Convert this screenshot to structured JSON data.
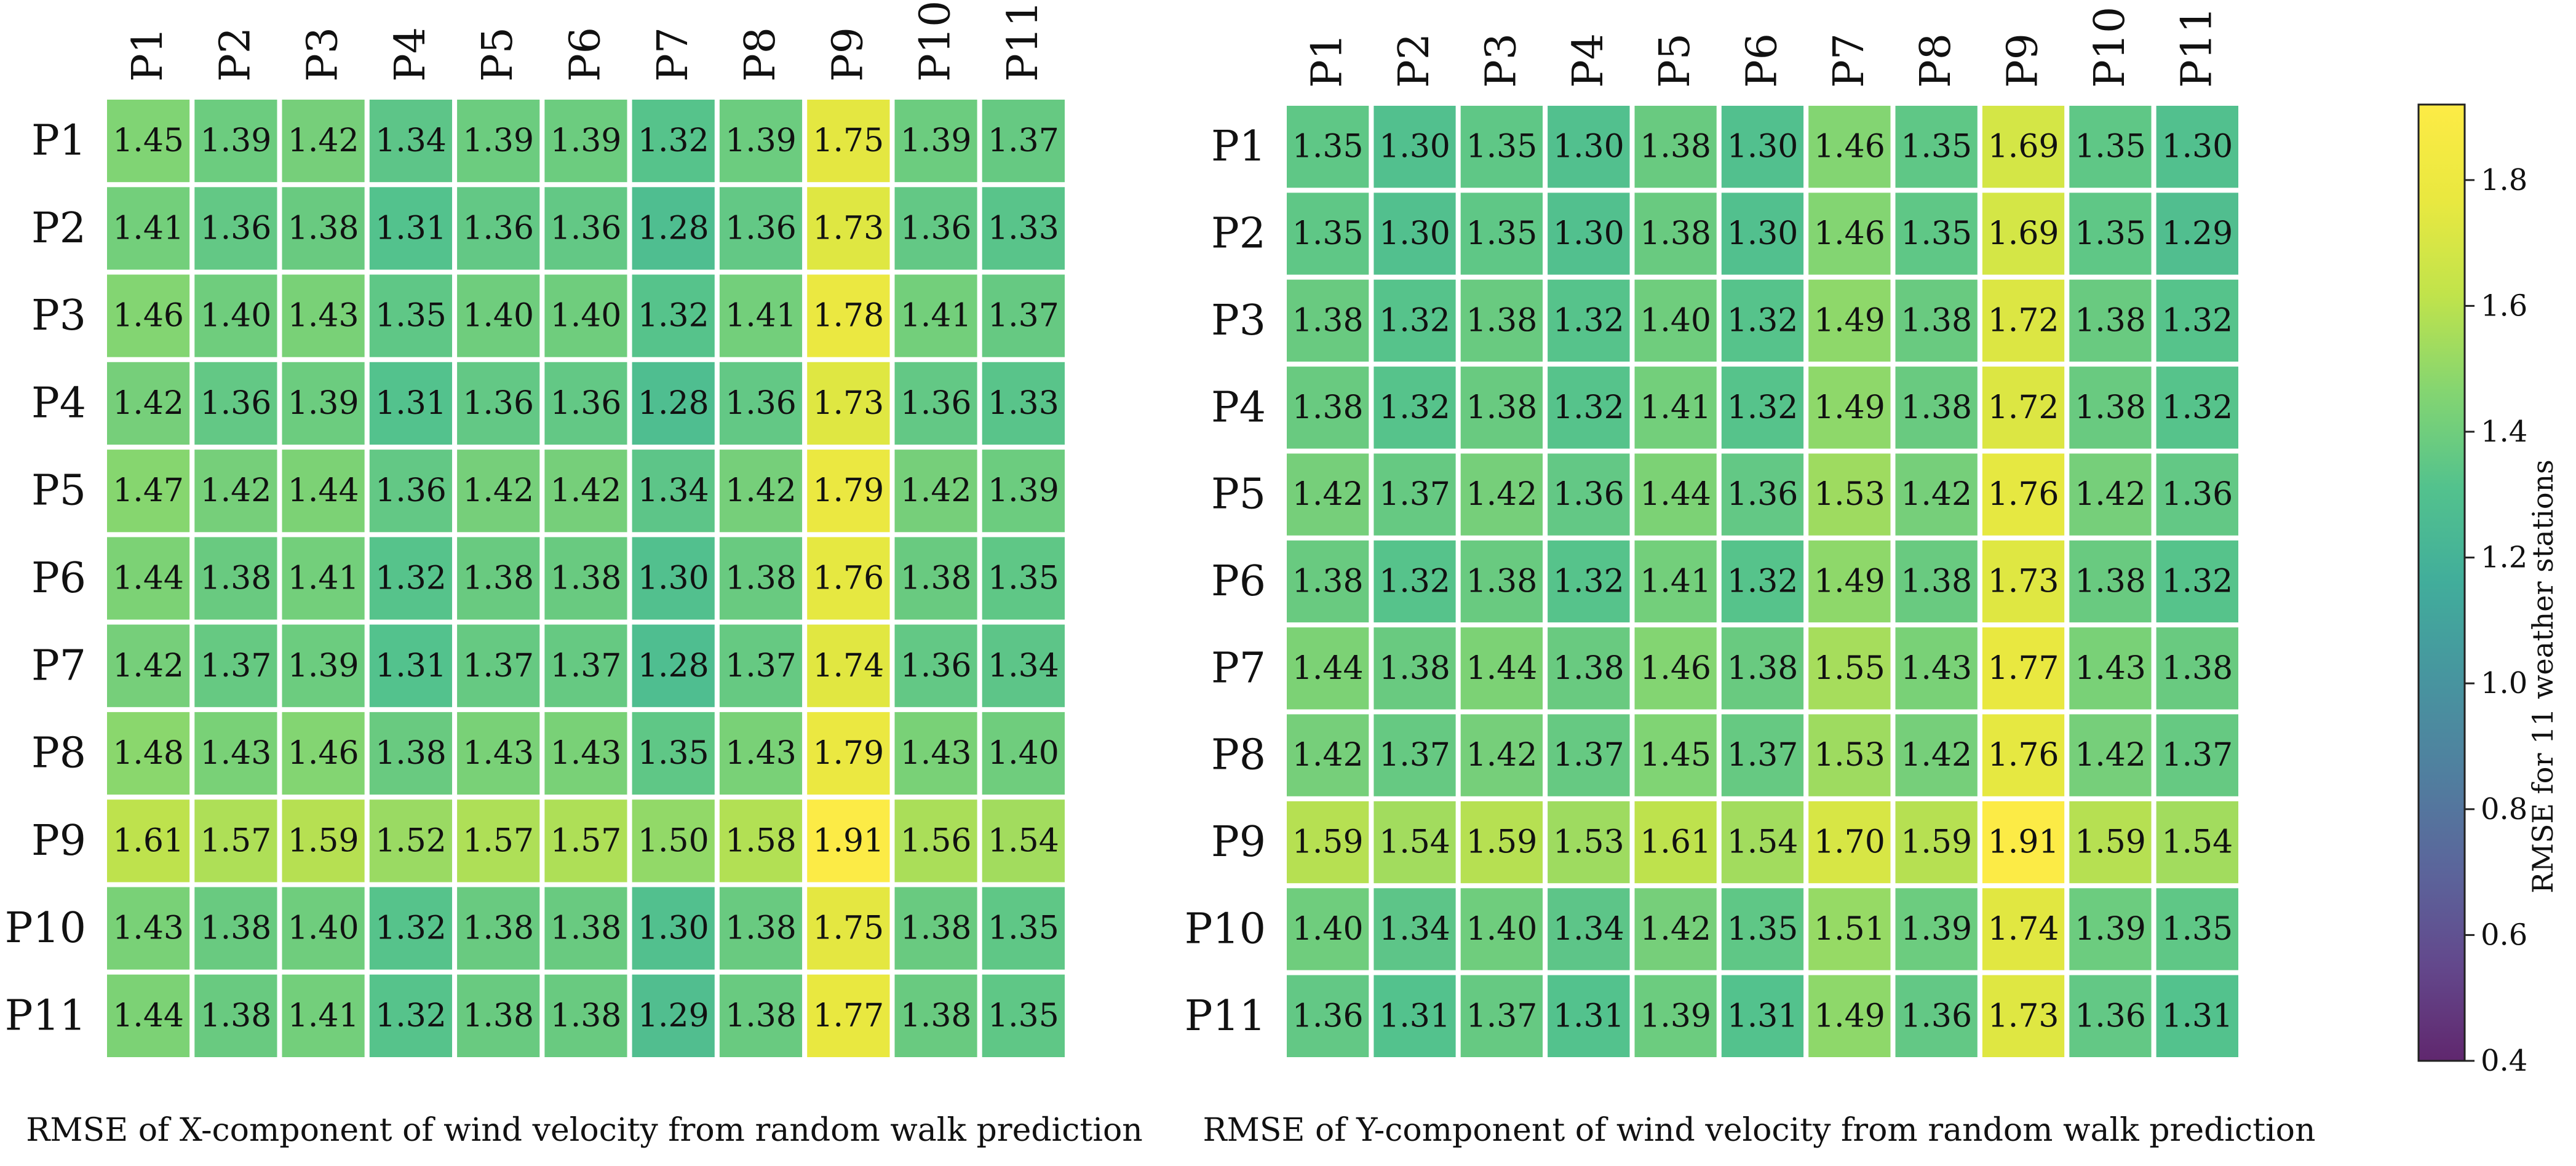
{
  "chart_data": [
    {
      "type": "heatmap",
      "title": "",
      "caption": "RMSE of X-component of wind velocity from random walk prediction",
      "x_categories": [
        "P1",
        "P2",
        "P3",
        "P4",
        "P5",
        "P6",
        "P7",
        "P8",
        "P9",
        "P10",
        "P11"
      ],
      "y_categories": [
        "P1",
        "P2",
        "P3",
        "P4",
        "P5",
        "P6",
        "P7",
        "P8",
        "P9",
        "P10",
        "P11"
      ],
      "values": [
        [
          1.45,
          1.39,
          1.42,
          1.34,
          1.39,
          1.39,
          1.32,
          1.39,
          1.75,
          1.39,
          1.37
        ],
        [
          1.41,
          1.36,
          1.38,
          1.31,
          1.36,
          1.36,
          1.28,
          1.36,
          1.73,
          1.36,
          1.33
        ],
        [
          1.46,
          1.4,
          1.43,
          1.35,
          1.4,
          1.4,
          1.32,
          1.41,
          1.78,
          1.41,
          1.37
        ],
        [
          1.42,
          1.36,
          1.39,
          1.31,
          1.36,
          1.36,
          1.28,
          1.36,
          1.73,
          1.36,
          1.33
        ],
        [
          1.47,
          1.42,
          1.44,
          1.36,
          1.42,
          1.42,
          1.34,
          1.42,
          1.79,
          1.42,
          1.39
        ],
        [
          1.44,
          1.38,
          1.41,
          1.32,
          1.38,
          1.38,
          1.3,
          1.38,
          1.76,
          1.38,
          1.35
        ],
        [
          1.42,
          1.37,
          1.39,
          1.31,
          1.37,
          1.37,
          1.28,
          1.37,
          1.74,
          1.36,
          1.34
        ],
        [
          1.48,
          1.43,
          1.46,
          1.38,
          1.43,
          1.43,
          1.35,
          1.43,
          1.79,
          1.43,
          1.4
        ],
        [
          1.61,
          1.57,
          1.59,
          1.52,
          1.57,
          1.57,
          1.5,
          1.58,
          1.91,
          1.56,
          1.54
        ],
        [
          1.43,
          1.38,
          1.4,
          1.32,
          1.38,
          1.38,
          1.3,
          1.38,
          1.75,
          1.38,
          1.35
        ],
        [
          1.44,
          1.38,
          1.41,
          1.32,
          1.38,
          1.38,
          1.29,
          1.38,
          1.77,
          1.38,
          1.35
        ]
      ]
    },
    {
      "type": "heatmap",
      "title": "",
      "caption": "RMSE of Y-component of wind velocity from random walk prediction",
      "x_categories": [
        "P1",
        "P2",
        "P3",
        "P4",
        "P5",
        "P6",
        "P7",
        "P8",
        "P9",
        "P10",
        "P11"
      ],
      "y_categories": [
        "P1",
        "P2",
        "P3",
        "P4",
        "P5",
        "P6",
        "P7",
        "P8",
        "P9",
        "P10",
        "P11"
      ],
      "values": [
        [
          1.35,
          1.3,
          1.35,
          1.3,
          1.38,
          1.3,
          1.46,
          1.35,
          1.69,
          1.35,
          1.3
        ],
        [
          1.35,
          1.3,
          1.35,
          1.3,
          1.38,
          1.3,
          1.46,
          1.35,
          1.69,
          1.35,
          1.29
        ],
        [
          1.38,
          1.32,
          1.38,
          1.32,
          1.4,
          1.32,
          1.49,
          1.38,
          1.72,
          1.38,
          1.32
        ],
        [
          1.38,
          1.32,
          1.38,
          1.32,
          1.41,
          1.32,
          1.49,
          1.38,
          1.72,
          1.38,
          1.32
        ],
        [
          1.42,
          1.37,
          1.42,
          1.36,
          1.44,
          1.36,
          1.53,
          1.42,
          1.76,
          1.42,
          1.36
        ],
        [
          1.38,
          1.32,
          1.38,
          1.32,
          1.41,
          1.32,
          1.49,
          1.38,
          1.73,
          1.38,
          1.32
        ],
        [
          1.44,
          1.38,
          1.44,
          1.38,
          1.46,
          1.38,
          1.55,
          1.43,
          1.77,
          1.43,
          1.38
        ],
        [
          1.42,
          1.37,
          1.42,
          1.37,
          1.45,
          1.37,
          1.53,
          1.42,
          1.76,
          1.42,
          1.37
        ],
        [
          1.59,
          1.54,
          1.59,
          1.53,
          1.61,
          1.54,
          1.7,
          1.59,
          1.91,
          1.59,
          1.54
        ],
        [
          1.4,
          1.34,
          1.4,
          1.34,
          1.42,
          1.35,
          1.51,
          1.39,
          1.74,
          1.39,
          1.35
        ],
        [
          1.36,
          1.31,
          1.37,
          1.31,
          1.39,
          1.31,
          1.49,
          1.36,
          1.73,
          1.36,
          1.31
        ]
      ]
    }
  ],
  "colorbar": {
    "label": "RMSE for 11 weather stations",
    "range": [
      0.4,
      1.92
    ],
    "ticks": [
      "0.4",
      "0.6",
      "0.8",
      "1.0",
      "1.2",
      "1.4",
      "1.6",
      "1.8"
    ],
    "colormap": "viridis",
    "alpha": 0.85
  }
}
